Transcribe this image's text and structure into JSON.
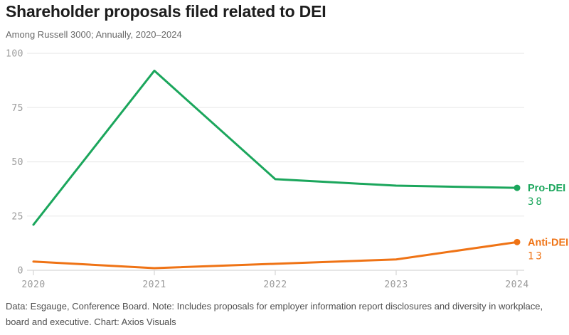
{
  "header": {
    "title": "Shareholder proposals filed related to DEI",
    "subtitle": "Among Russell 3000; Annually, 2020–2024"
  },
  "footer": {
    "note": "Data: Esgauge, Conference Board. Note: Includes proposals for employer information report disclosures and diversity in workplace, board and executive. Chart: Axios Visuals"
  },
  "colors": {
    "pro_dei": "#1ba65c",
    "anti_dei": "#ef7315",
    "grid_line": "#ebebeb",
    "axis_line": "#d6d6d6",
    "tick_label": "#9b9b9b"
  },
  "chart_data": {
    "type": "line",
    "title": "Shareholder proposals filed related to DEI",
    "subtitle": "Among Russell 3000; Annually, 2020–2024",
    "x": [
      2020,
      2021,
      2022,
      2023,
      2024
    ],
    "xticks": [
      2020,
      2021,
      2022,
      2023,
      2024
    ],
    "yticks": [
      0,
      25,
      50,
      75,
      100
    ],
    "ylim": [
      0,
      100
    ],
    "xlabel": "",
    "ylabel": "",
    "grid": "horizontal",
    "legend_position": "right-end-labels",
    "series": [
      {
        "name": "Pro-DEI",
        "color": "#1ba65c",
        "values": [
          21,
          92,
          42,
          39,
          38
        ],
        "end_label": "Pro-DEI",
        "end_value": "38"
      },
      {
        "name": "Anti-DEI",
        "color": "#ef7315",
        "values": [
          4,
          1,
          3,
          5,
          13
        ],
        "end_label": "Anti-DEI",
        "end_value": "13"
      }
    ]
  }
}
